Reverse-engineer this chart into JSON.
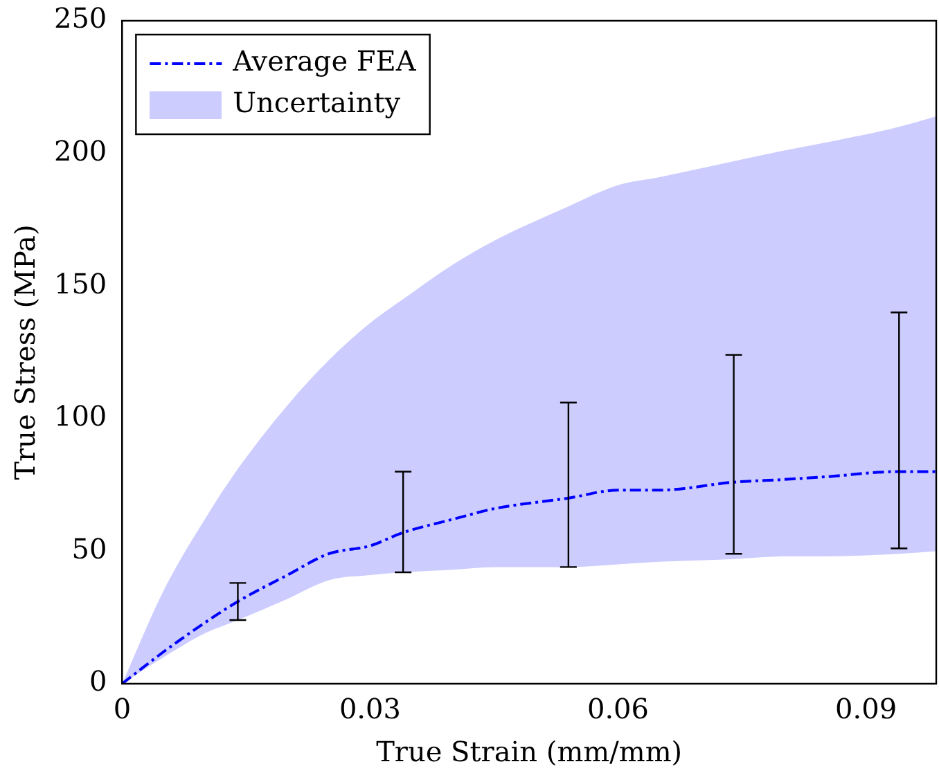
{
  "chart_data": {
    "type": "line",
    "xlabel": "True Strain (mm/mm)",
    "ylabel": "True Stress (MPa)",
    "xlim": [
      0,
      0.0985
    ],
    "xticks": [
      0,
      0.03,
      0.06,
      0.09
    ],
    "ylim": [
      0,
      250
    ],
    "yticks": [
      0,
      50,
      100,
      150,
      200,
      250
    ],
    "legend": "top left",
    "grid": false,
    "annotations": [
      "Uncertainty"
    ],
    "series": [
      {
        "name": "Average FEA",
        "type": "line",
        "color": "#0000ff",
        "line_style": "dashed",
        "marker": "none",
        "x": [
          0,
          0.005,
          0.01,
          0.014,
          0.02,
          0.025,
          0.03,
          0.034,
          0.04,
          0.045,
          0.054,
          0.06,
          0.065,
          0.074,
          0.08,
          0.085,
          0.094,
          0.0985
        ],
        "values": [
          0,
          12,
          23,
          31,
          41,
          49,
          52,
          57,
          62,
          66,
          70,
          73,
          73,
          76,
          77,
          78,
          80,
          80
        ],
        "errors": [
          null,
          null,
          null,
          [
            24,
            38
          ],
          null,
          null,
          null,
          [
            42,
            80
          ],
          null,
          null,
          [
            44,
            106
          ],
          null,
          null,
          [
            49,
            124
          ],
          null,
          null,
          [
            51,
            140
          ],
          null
        ],
        "lower": [
          0,
          10,
          19,
          24,
          32,
          39,
          41,
          42,
          43,
          44,
          44,
          45,
          46,
          47,
          48,
          48,
          49,
          50
        ],
        "upper": [
          0,
          35,
          62,
          81,
          105,
          122,
          136,
          145,
          158,
          167,
          180,
          188,
          191,
          197,
          201,
          204,
          210,
          214
        ]
      }
    ]
  }
}
